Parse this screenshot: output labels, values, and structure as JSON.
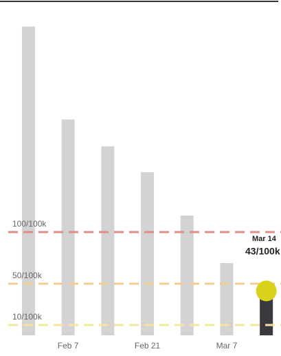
{
  "chart_data": {
    "type": "bar",
    "categories": [
      null,
      "Feb 7",
      null,
      "Feb 21",
      null,
      "Mar 7",
      null
    ],
    "values": [
      299,
      209,
      183,
      158,
      116,
      70,
      43
    ],
    "colors": [
      "#d3d3d3",
      "#d3d3d3",
      "#d3d3d3",
      "#d3d3d3",
      "#d3d3d3",
      "#d3d3d3",
      "#3a3a3e"
    ],
    "highlight_color": "#d8d21c",
    "ylim": [
      0,
      300
    ],
    "reference_lines": [
      {
        "label": "100/100k",
        "value": 100,
        "color": "#dc8d86"
      },
      {
        "label": "50/100k",
        "value": 50,
        "color": "#f3cb96"
      },
      {
        "label": "10/100k",
        "value": 10,
        "color": "#f2e59e"
      }
    ],
    "annotations": [
      "Mar 14",
      "43/100k"
    ]
  }
}
